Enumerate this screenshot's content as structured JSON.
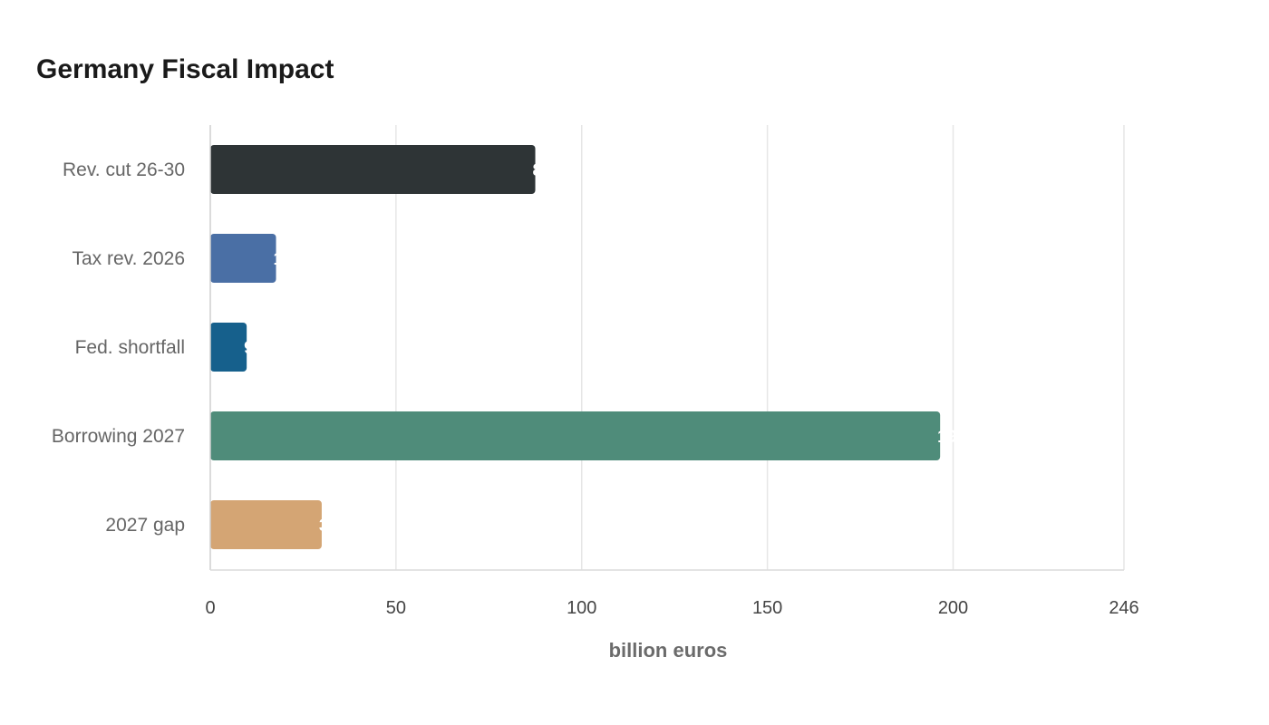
{
  "chart_data": {
    "type": "bar",
    "orientation": "horizontal",
    "title": "Germany Fiscal Impact",
    "xlabel": "billion euros",
    "ylabel": "",
    "categories": [
      "Rev. cut 26-30",
      "Tax rev. 2026",
      "Fed. shortfall",
      "Borrowing 2027",
      "2027 gap"
    ],
    "values": [
      87.5,
      17.7,
      9.8,
      196.5,
      30.0
    ],
    "colors": [
      "#2e3436",
      "#4a6fa5",
      "#16608c",
      "#4f8c7a",
      "#d4a574"
    ],
    "xlim": [
      0,
      246
    ],
    "xticks": [
      0,
      50,
      100,
      150,
      200,
      246
    ],
    "grid": true,
    "legend": "none"
  }
}
